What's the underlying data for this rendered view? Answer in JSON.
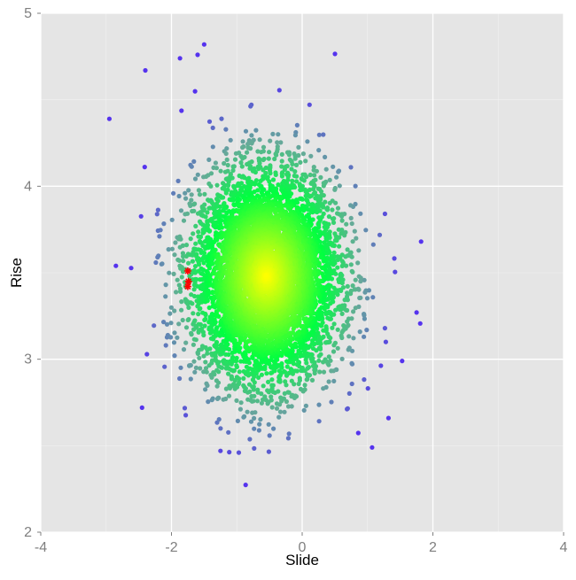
{
  "chart_data": {
    "type": "scatter",
    "title": "",
    "xlabel": "Slide",
    "ylabel": "Rise",
    "xlim": [
      -4,
      4
    ],
    "ylim": [
      2,
      5
    ],
    "xticks": [
      "-4",
      "-2",
      "0",
      "2",
      "4"
    ],
    "yticks": [
      "2",
      "3",
      "4",
      "5"
    ],
    "grid": true,
    "legend": "none",
    "colors": {
      "panel": "#e5e5e5",
      "grid": "#ffffff",
      "center": "#ffff00",
      "mid": "#00ff40",
      "outer": "#66aa99",
      "far": "#5533ee",
      "highlight": "#ff0000"
    },
    "bulk_distribution": {
      "n": 6000,
      "center": [
        -0.55,
        3.48
      ],
      "sd": [
        0.55,
        0.3
      ]
    },
    "outlier_points": [
      [
        -2.95,
        4.39
      ],
      [
        1.82,
        3.68
      ],
      [
        1.07,
        2.49
      ],
      [
        -1.25,
        2.47
      ],
      [
        -0.97,
        2.46
      ],
      [
        -2.45,
        2.72
      ],
      [
        1.75,
        3.27
      ],
      [
        1.32,
        2.66
      ],
      [
        -1.5,
        4.82
      ],
      [
        -2.85,
        3.54
      ],
      [
        1.53,
        2.99
      ],
      [
        -1.6,
        4.76
      ],
      [
        -2.4,
        4.67
      ],
      [
        -1.87,
        4.74
      ],
      [
        1.28,
        3.1
      ]
    ],
    "highlighted_points": [
      [
        -1.75,
        3.51
      ],
      [
        -1.74,
        3.45
      ],
      [
        -1.75,
        3.42
      ]
    ]
  }
}
